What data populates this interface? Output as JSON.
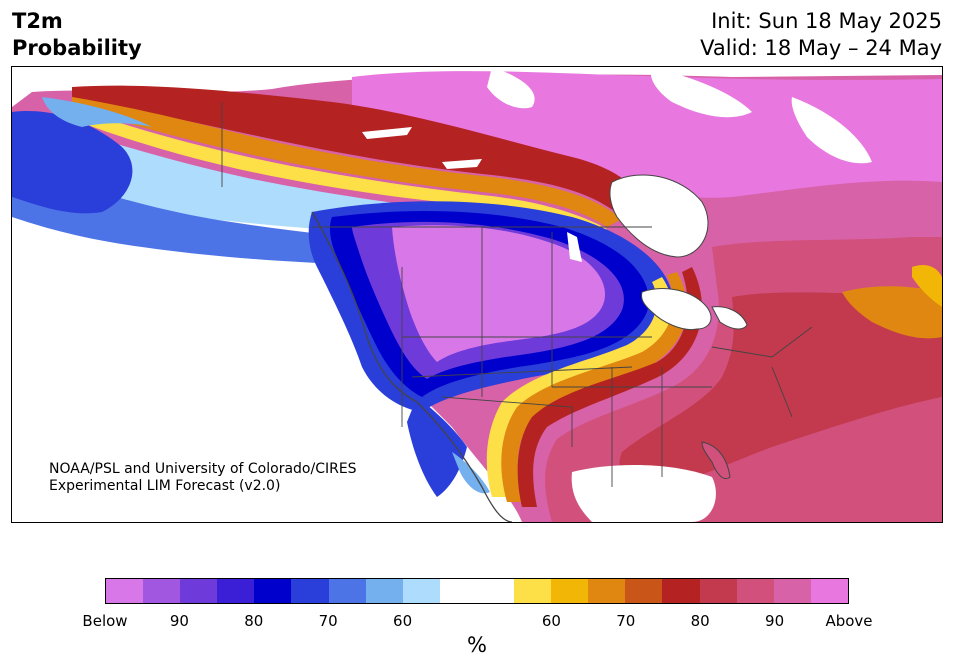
{
  "title": {
    "left_line1": "T2m",
    "left_line2": "Probability",
    "init": "Init: Sun 18 May 2025",
    "valid": "Valid: 18 May – 24 May"
  },
  "credit": {
    "line1": "NOAA/PSL and University of Colorado/CIRES",
    "line2": "Experimental LIM Forecast (v2.0)"
  },
  "colorbar": {
    "colors": [
      "#d878e8",
      "#a257e0",
      "#6f3ada",
      "#3a1fd6",
      "#0000cc",
      "#2a3ed9",
      "#4d74e6",
      "#74afee",
      "#aedcfc",
      "#ffffff",
      "#ffffff",
      "#fde047",
      "#f2b706",
      "#df8710",
      "#c95518",
      "#b42222",
      "#c33a4e",
      "#d1517c",
      "#d762a8",
      "#e877e0"
    ],
    "tick_labels": [
      "Below",
      "90",
      "80",
      "70",
      "60",
      "60",
      "70",
      "80",
      "90",
      "Above"
    ],
    "unit": "%"
  },
  "map_palette": {
    "below": [
      "#d878e8",
      "#a257e0",
      "#6f3ada",
      "#3a1fd6",
      "#0000cc",
      "#2a3ed9",
      "#4d74e6",
      "#74afee",
      "#aedcfc"
    ],
    "above": [
      "#fde047",
      "#f2b706",
      "#df8710",
      "#c95518",
      "#b42222",
      "#c33a4e",
      "#d1517c",
      "#d762a8",
      "#e877e0"
    ],
    "land_outline": "#444444"
  }
}
